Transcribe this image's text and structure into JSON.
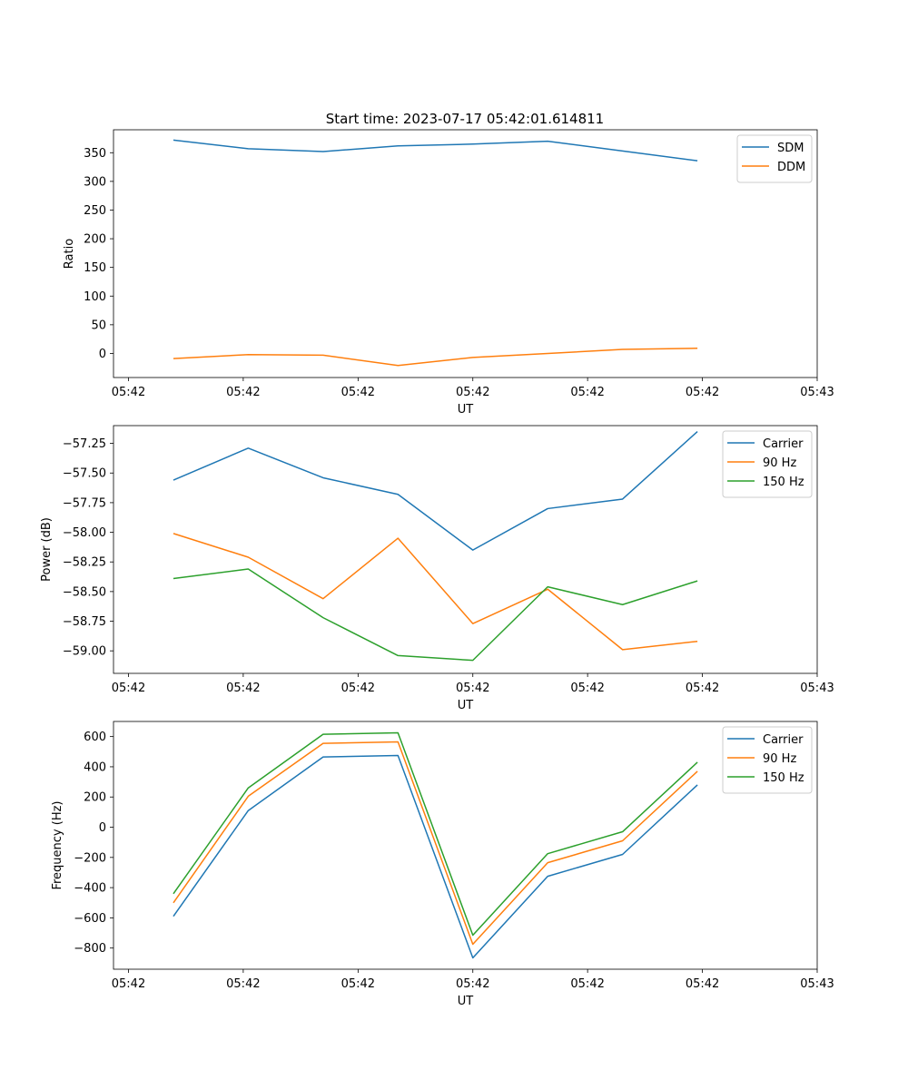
{
  "chart_data": [
    {
      "type": "line",
      "title": "Start time: 2023-07-17 05:42:01.614811",
      "xlabel": "UT",
      "ylabel": "Ratio",
      "x": [
        1,
        2,
        3,
        4,
        5,
        6,
        7,
        8
      ],
      "xlim": [
        0.2,
        9.6
      ],
      "x_ticks": [
        0.4,
        1.933,
        3.467,
        5.0,
        6.533,
        8.067,
        9.6
      ],
      "x_tick_labels": [
        "05:42",
        "05:42",
        "05:42",
        "05:42",
        "05:42",
        "05:42",
        "05:43"
      ],
      "ylim": [
        -42,
        390
      ],
      "y_ticks": [
        0,
        50,
        100,
        150,
        200,
        250,
        300,
        350
      ],
      "y_tick_labels": [
        "0",
        "50",
        "100",
        "150",
        "200",
        "250",
        "300",
        "350"
      ],
      "legend": "upper right",
      "series": [
        {
          "name": "SDM",
          "color": "#1f77b4",
          "values": [
            372,
            357,
            352,
            362,
            365,
            370,
            353,
            336
          ]
        },
        {
          "name": "DDM",
          "color": "#ff7f0e",
          "values": [
            -9,
            -2,
            -3,
            -21,
            -7,
            0,
            7,
            9
          ]
        }
      ]
    },
    {
      "type": "line",
      "title": "",
      "xlabel": "UT",
      "ylabel": "Power (dB)",
      "x": [
        1,
        2,
        3,
        4,
        5,
        6,
        7,
        8
      ],
      "xlim": [
        0.2,
        9.6
      ],
      "x_ticks": [
        0.4,
        1.933,
        3.467,
        5.0,
        6.533,
        8.067,
        9.6
      ],
      "x_tick_labels": [
        "05:42",
        "05:42",
        "05:42",
        "05:42",
        "05:42",
        "05:42",
        "05:43"
      ],
      "ylim": [
        -59.19,
        -57.1
      ],
      "y_ticks": [
        -59.0,
        -58.75,
        -58.5,
        -58.25,
        -58.0,
        -57.75,
        -57.5,
        -57.25
      ],
      "y_tick_labels": [
        "−59.00",
        "−58.75",
        "−58.50",
        "−58.25",
        "−58.00",
        "−57.75",
        "−57.50",
        "−57.25"
      ],
      "legend": "upper right",
      "series": [
        {
          "name": "Carrier",
          "color": "#1f77b4",
          "values": [
            -57.56,
            -57.29,
            -57.54,
            -57.68,
            -58.15,
            -57.8,
            -57.72,
            -57.15
          ]
        },
        {
          "name": "90 Hz",
          "color": "#ff7f0e",
          "values": [
            -58.01,
            -58.21,
            -58.56,
            -58.05,
            -58.77,
            -58.48,
            -58.99,
            -58.92
          ]
        },
        {
          "name": "150 Hz",
          "color": "#2ca02c",
          "values": [
            -58.39,
            -58.31,
            -58.72,
            -59.04,
            -59.08,
            -58.46,
            -58.61,
            -58.41
          ]
        }
      ]
    },
    {
      "type": "line",
      "title": "",
      "xlabel": "UT",
      "ylabel": "Frequency (Hz)",
      "x": [
        1,
        2,
        3,
        4,
        5,
        6,
        7,
        8
      ],
      "xlim": [
        0.2,
        9.6
      ],
      "x_ticks": [
        0.4,
        1.933,
        3.467,
        5.0,
        6.533,
        8.067,
        9.6
      ],
      "x_tick_labels": [
        "05:42",
        "05:42",
        "05:42",
        "05:42",
        "05:42",
        "05:42",
        "05:43"
      ],
      "ylim": [
        -940,
        700
      ],
      "y_ticks": [
        -800,
        -600,
        -400,
        -200,
        0,
        200,
        400,
        600
      ],
      "y_tick_labels": [
        "−800",
        "−600",
        "−400",
        "−200",
        "0",
        "200",
        "400",
        "600"
      ],
      "legend": "upper right",
      "series": [
        {
          "name": "Carrier",
          "color": "#1f77b4",
          "values": [
            -590,
            110,
            465,
            475,
            -865,
            -325,
            -180,
            280
          ]
        },
        {
          "name": "90 Hz",
          "color": "#ff7f0e",
          "values": [
            -500,
            205,
            555,
            565,
            -775,
            -235,
            -90,
            370
          ]
        },
        {
          "name": "150 Hz",
          "color": "#2ca02c",
          "values": [
            -440,
            260,
            615,
            625,
            -715,
            -175,
            -30,
            430
          ]
        }
      ]
    }
  ]
}
